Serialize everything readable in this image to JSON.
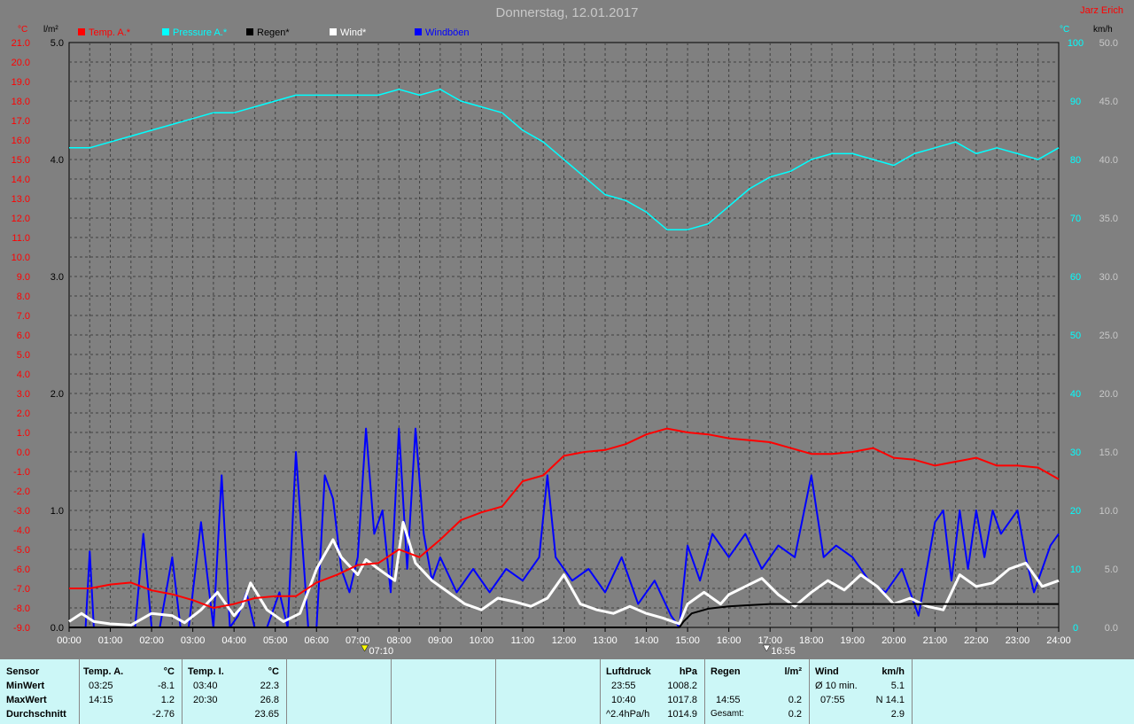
{
  "title": "Donnerstag, 12.01.2017",
  "owner": "Jarz Erich",
  "units": {
    "temp": "°C",
    "rain": "l/m²",
    "wind": "km/h",
    "pressure_left": "°C",
    "pressure_right": "°C"
  },
  "legend": [
    {
      "label": "Temp. A.*",
      "color": "#ff0000"
    },
    {
      "label": "Pressure A.*",
      "color": "#00ffff"
    },
    {
      "label": "Regen*",
      "color": "#000000"
    },
    {
      "label": "Wind*",
      "color": "#ffffff"
    },
    {
      "label": "Windböen",
      "color": "#0000ff"
    }
  ],
  "markers": {
    "sunrise": "07:10",
    "sunset": "16:55"
  },
  "chart_data": {
    "type": "line",
    "x_ticks": [
      "00:00",
      "01:00",
      "02:00",
      "03:00",
      "04:00",
      "05:00",
      "06:00",
      "07:00",
      "08:00",
      "09:00",
      "10:00",
      "11:00",
      "12:00",
      "13:00",
      "14:00",
      "15:00",
      "16:00",
      "17:00",
      "18:00",
      "19:00",
      "20:00",
      "21:00",
      "22:00",
      "23:00",
      "24:00"
    ],
    "axes": {
      "temp": {
        "min": -9,
        "max": 21,
        "ticks": [
          "21.0",
          "20.0",
          "19.0",
          "18.0",
          "17.0",
          "16.0",
          "15.0",
          "14.0",
          "13.0",
          "12.0",
          "11.0",
          "10.0",
          "9.0",
          "8.0",
          "7.0",
          "6.0",
          "5.0",
          "4.0",
          "3.0",
          "2.0",
          "1.0",
          "0.0",
          "-1.0",
          "-2.0",
          "-3.0",
          "-4.0",
          "-5.0",
          "-6.0",
          "-7.0",
          "-8.0",
          "-9.0"
        ]
      },
      "rain": {
        "min": 0,
        "max": 5,
        "ticks": [
          "5.0",
          "4.0",
          "3.0",
          "2.0",
          "1.0",
          "0.0"
        ]
      },
      "pressure": {
        "min": 0,
        "max": 100,
        "ticks": [
          "100",
          "90",
          "80",
          "70",
          "60",
          "50",
          "40",
          "30",
          "20",
          "10",
          "0"
        ]
      },
      "wind": {
        "min": 0,
        "max": 50,
        "ticks": [
          "50.0",
          "45.0",
          "40.0",
          "35.0",
          "30.0",
          "25.0",
          "20.0",
          "15.0",
          "10.0",
          "5.0",
          "0.0"
        ]
      }
    },
    "series": [
      {
        "name": "Temp. A.*",
        "axis": "temp",
        "color": "#ff0000",
        "x": [
          0,
          0.5,
          1,
          1.5,
          2,
          2.5,
          3,
          3.5,
          4,
          4.5,
          5,
          5.5,
          6,
          6.5,
          7,
          7.5,
          8,
          8.5,
          9,
          9.5,
          10,
          10.5,
          11,
          11.5,
          12,
          12.5,
          13,
          13.5,
          14,
          14.5,
          15,
          15.5,
          16,
          16.5,
          17,
          17.5,
          18,
          18.5,
          19,
          19.5,
          20,
          20.5,
          21,
          21.5,
          22,
          22.5,
          23,
          23.5,
          24
        ],
        "y": [
          -7.0,
          -7.0,
          -6.8,
          -6.7,
          -7.1,
          -7.3,
          -7.6,
          -8.0,
          -7.8,
          -7.5,
          -7.4,
          -7.4,
          -6.7,
          -6.3,
          -5.8,
          -5.7,
          -5.0,
          -5.4,
          -4.5,
          -3.5,
          -3.1,
          -2.8,
          -1.5,
          -1.2,
          -0.2,
          0.0,
          0.1,
          0.4,
          0.9,
          1.2,
          1.0,
          0.9,
          0.7,
          0.6,
          0.5,
          0.2,
          -0.1,
          -0.1,
          0.0,
          0.2,
          -0.3,
          -0.4,
          -0.7,
          -0.5,
          -0.3,
          -0.7,
          -0.7,
          -0.8,
          -1.4
        ]
      },
      {
        "name": "Pressure A.*",
        "axis": "pressure",
        "color": "#00ffff",
        "x": [
          0,
          0.5,
          1,
          1.5,
          2,
          2.5,
          3,
          3.5,
          4,
          4.5,
          5,
          5.5,
          6,
          6.5,
          7,
          7.5,
          8,
          8.5,
          9,
          9.5,
          10,
          10.5,
          11,
          11.5,
          12,
          12.5,
          13,
          13.5,
          14,
          14.5,
          15,
          15.5,
          16,
          16.5,
          17,
          17.5,
          18,
          18.5,
          19,
          19.5,
          20,
          20.5,
          21,
          21.5,
          22,
          22.5,
          23,
          23.5,
          24
        ],
        "y": [
          82,
          82,
          83,
          84,
          85,
          86,
          87,
          88,
          88,
          89,
          90,
          91,
          91,
          91,
          91,
          91,
          92,
          91,
          92,
          90,
          89,
          88,
          85,
          83,
          80,
          77,
          74,
          73,
          71,
          68,
          68,
          69,
          72,
          75,
          77,
          78,
          80,
          81,
          81,
          80,
          79,
          81,
          82,
          83,
          81,
          82,
          81,
          80,
          82
        ]
      },
      {
        "name": "Regen*",
        "axis": "rain",
        "color": "#000000",
        "x": [
          0,
          14.8,
          14.9,
          15.1,
          15.5,
          16,
          16.5,
          17,
          18,
          20,
          22,
          24
        ],
        "y": [
          0,
          0,
          0.05,
          0.12,
          0.16,
          0.18,
          0.19,
          0.2,
          0.2,
          0.2,
          0.2,
          0.2
        ]
      },
      {
        "name": "Wind*",
        "axis": "wind",
        "color": "#ffffff",
        "x": [
          0,
          0.3,
          0.6,
          1,
          1.5,
          2,
          2.5,
          2.8,
          3.2,
          3.6,
          4,
          4.2,
          4.4,
          4.8,
          5.2,
          5.6,
          6,
          6.4,
          6.6,
          7,
          7.2,
          7.5,
          7.9,
          8.1,
          8.4,
          8.8,
          9.2,
          9.6,
          10,
          10.4,
          10.8,
          11.2,
          11.6,
          12,
          12.4,
          12.8,
          13.2,
          13.6,
          14,
          14.4,
          14.8,
          15,
          15.4,
          15.8,
          16,
          16.4,
          16.8,
          17.2,
          17.6,
          18,
          18.4,
          18.8,
          19.2,
          19.6,
          20,
          20.4,
          20.8,
          21.2,
          21.6,
          22,
          22.4,
          22.8,
          23.2,
          23.6,
          24
        ],
        "y": [
          0.5,
          1.2,
          0.5,
          0.3,
          0.2,
          1.2,
          1.0,
          0.4,
          1.5,
          3.0,
          1.0,
          1.8,
          3.8,
          1.5,
          0.5,
          1.2,
          5.0,
          7.5,
          6.0,
          4.5,
          5.8,
          5.0,
          4.0,
          9.0,
          5.5,
          4.0,
          3.0,
          2.0,
          1.5,
          2.5,
          2.2,
          1.8,
          2.5,
          4.5,
          2.0,
          1.5,
          1.2,
          1.8,
          1.2,
          0.8,
          0.3,
          2.0,
          3.0,
          2.0,
          2.8,
          3.5,
          4.2,
          2.8,
          1.8,
          3.0,
          4.0,
          3.2,
          4.5,
          3.5,
          2.0,
          2.5,
          1.8,
          1.5,
          4.5,
          3.5,
          3.8,
          5.0,
          5.5,
          3.5,
          4.0
        ]
      },
      {
        "name": "Windböen",
        "axis": "wind",
        "color": "#0000ff",
        "x": [
          0,
          0.4,
          0.5,
          0.6,
          1,
          1.6,
          1.8,
          2,
          2.2,
          2.5,
          2.7,
          2.9,
          3.2,
          3.5,
          3.7,
          3.9,
          4.1,
          4.3,
          4.5,
          4.8,
          5.1,
          5.3,
          5.5,
          5.8,
          6.0,
          6.2,
          6.4,
          6.6,
          6.8,
          7.0,
          7.2,
          7.4,
          7.6,
          7.8,
          8.0,
          8.2,
          8.4,
          8.6,
          8.8,
          9.0,
          9.4,
          9.8,
          10.2,
          10.6,
          11.0,
          11.4,
          11.6,
          11.8,
          12.2,
          12.6,
          13.0,
          13.4,
          13.8,
          14.2,
          14.6,
          14.8,
          15.0,
          15.3,
          15.6,
          16.0,
          16.4,
          16.8,
          17.2,
          17.6,
          18.0,
          18.3,
          18.6,
          19.0,
          19.4,
          19.8,
          20.2,
          20.6,
          21.0,
          21.2,
          21.4,
          21.6,
          21.8,
          22.0,
          22.2,
          22.4,
          22.6,
          22.8,
          23.0,
          23.2,
          23.4,
          23.6,
          23.8,
          24
        ],
        "y": [
          0,
          0,
          6.5,
          0,
          0,
          0,
          8,
          0,
          0,
          6,
          0,
          0,
          9,
          0,
          13,
          0,
          1,
          3,
          0,
          0,
          3,
          0,
          15,
          0,
          0,
          13,
          11,
          5,
          3,
          6,
          17,
          8,
          10,
          3,
          17,
          5,
          17,
          8,
          4,
          6,
          3,
          5,
          3,
          5,
          4,
          6,
          13,
          6,
          4,
          5,
          3,
          6,
          2,
          4,
          1,
          0,
          7,
          4,
          8,
          6,
          8,
          5,
          7,
          6,
          13,
          6,
          7,
          6,
          4,
          3,
          5,
          1,
          9,
          10,
          4,
          10,
          5,
          10,
          6,
          10,
          8,
          9,
          10,
          6,
          3,
          5,
          7,
          8
        ]
      }
    ]
  },
  "stats": {
    "sensor": {
      "header": "Sensor",
      "rows": [
        "MinWert",
        "MaxWert",
        "Durchschnitt"
      ]
    },
    "temp_a": {
      "header": "Temp. A.",
      "unit": "°C",
      "min_time": "03:25",
      "min_val": "-8.1",
      "max_time": "14:15",
      "max_val": "1.2",
      "avg": "-2.76"
    },
    "temp_i": {
      "header": "Temp. I.",
      "unit": "°C",
      "min_time": "03:40",
      "min_val": "22.3",
      "max_time": "20:30",
      "max_val": "26.8",
      "avg": "23.65"
    },
    "pressure": {
      "header": "Luftdruck",
      "unit": "hPa",
      "min_time": "23:55",
      "min_val": "1008.2",
      "max_time": "10:40",
      "max_val": "1017.8",
      "avg_label": "^2.4hPa/h",
      "avg": "1014.9"
    },
    "rain": {
      "header": "Regen",
      "unit": "l/m²",
      "max_time": "14:55",
      "max_val": "0.2",
      "total_label": "Gesamt:",
      "total": "0.2"
    },
    "wind": {
      "header": "Wind",
      "unit": "km/h",
      "min_label": "Ø 10 min.",
      "min_val": "5.1",
      "max_time": "07:55",
      "max_val": "N 14.1",
      "avg": "2.9"
    }
  }
}
